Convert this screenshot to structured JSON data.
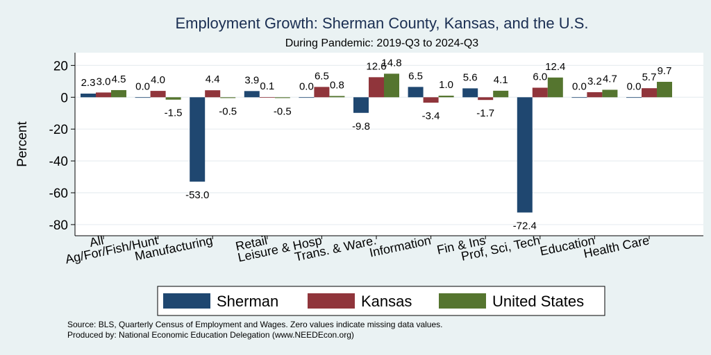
{
  "colors": {
    "background": "#eaf2f3",
    "plot_background": "#ffffff",
    "title": "#1a2e52",
    "sherman": "#1f4770",
    "kansas": "#90353b",
    "united_states": "#55752f",
    "grid": "#e8eef0",
    "text": "#000000"
  },
  "chart_data": {
    "type": "bar",
    "title": "Employment Growth: Sherman County, Kansas, and the U.S.",
    "subtitle": "During Pandemic: 2019-Q3 to 2024-Q3",
    "xlabel": "",
    "ylabel": "Percent",
    "ylim": [
      -87,
      28
    ],
    "yticks": [
      20,
      0,
      -20,
      -40,
      -60,
      -80
    ],
    "grid": true,
    "legend_position": "bottom",
    "categories": [
      "All",
      "Ag/For/Fish/Hunt",
      "Manufacturing",
      "Retail",
      "Leisure & Hosp",
      "Trans. & Ware.",
      "Information",
      "Fin & Ins",
      "Prof, Sci, Tech",
      "Education",
      "Health Care"
    ],
    "series": [
      {
        "name": "Sherman",
        "values": [
          2.3,
          0.0,
          -53.0,
          3.9,
          0.0,
          -9.8,
          6.5,
          5.6,
          -72.4,
          0.0,
          0.0
        ]
      },
      {
        "name": "Kansas",
        "values": [
          3.0,
          4.0,
          4.4,
          0.1,
          6.5,
          12.6,
          -3.4,
          -1.7,
          6.0,
          3.2,
          5.7
        ]
      },
      {
        "name": "United States",
        "values": [
          4.5,
          -1.5,
          -0.5,
          -0.5,
          0.8,
          14.8,
          1.0,
          4.1,
          12.4,
          4.7,
          9.7
        ]
      }
    ],
    "notes": [
      "Source: BLS, Quarterly Census of Employment and Wages. Zero values indicate missing data values.",
      "Produced by: National Economic Education Delegation (www.NEEDEcon.org)"
    ]
  }
}
